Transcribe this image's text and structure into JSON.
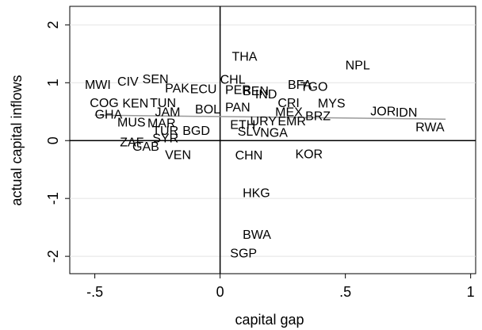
{
  "chart_data": {
    "type": "scatter",
    "x_label": "capital gap",
    "y_label": "actual capital inflows",
    "labels": [
      "THA",
      "NPL",
      "CHL",
      "BFA",
      "TGO",
      "MWI",
      "CIV",
      "SEN",
      "PAK",
      "ECU",
      "PER",
      "BEN",
      "IND",
      "COG",
      "KEN",
      "TUN",
      "CRI",
      "MYS",
      "JOR",
      "IDN",
      "RWA",
      "GHA",
      "JAM",
      "BOL",
      "PAN",
      "MEX",
      "BRZ",
      "MUS",
      "MAR",
      "ETH",
      "URY",
      "EMR",
      "SLV",
      "NGA",
      "TUR",
      "BGD",
      "ZAF",
      "SYR",
      "GAB",
      "VEN",
      "CHN",
      "KOR",
      "HKG",
      "BWA",
      "SGP"
    ],
    "x": [
      0.047,
      0.5,
      0.0,
      0.27,
      0.32,
      -0.54,
      -0.41,
      -0.31,
      -0.22,
      -0.12,
      0.02,
      0.09,
      0.14,
      -0.52,
      -0.39,
      -0.28,
      0.23,
      0.39,
      0.6,
      0.7,
      0.78,
      -0.5,
      -0.26,
      -0.1,
      0.02,
      0.22,
      0.34,
      -0.41,
      -0.29,
      0.04,
      0.12,
      0.23,
      0.07,
      0.16,
      -0.27,
      -0.15,
      -0.4,
      -0.27,
      -0.35,
      -0.22,
      0.06,
      0.3,
      0.09,
      0.09,
      0.04
    ],
    "values": [
      1.44,
      1.29,
      1.04,
      0.95,
      0.92,
      0.95,
      1.01,
      1.05,
      0.89,
      0.88,
      0.86,
      0.84,
      0.79,
      0.64,
      0.63,
      0.64,
      0.64,
      0.63,
      0.49,
      0.47,
      0.22,
      0.44,
      0.48,
      0.53,
      0.56,
      0.48,
      0.41,
      0.3,
      0.29,
      0.26,
      0.32,
      0.32,
      0.14,
      0.12,
      0.16,
      0.16,
      -0.04,
      0.03,
      -0.12,
      -0.26,
      -0.27,
      -0.25,
      -0.92,
      -1.64,
      -1.96
    ],
    "fit_line": {
      "x": [
        -0.5,
        0.9
      ],
      "values": [
        0.44,
        0.37
      ],
      "color": "#999999"
    },
    "xline": 0,
    "yline": 0,
    "xlim": [
      -0.6,
      1.02
    ],
    "ylim": [
      -2.3,
      2.32
    ],
    "xticks": [
      {
        "value": -0.5,
        "label": "-.5"
      },
      0,
      {
        "value": 0.5,
        "label": ".5"
      },
      1
    ],
    "yticks": [
      -2,
      -1,
      0,
      1,
      2
    ],
    "grid": true
  }
}
